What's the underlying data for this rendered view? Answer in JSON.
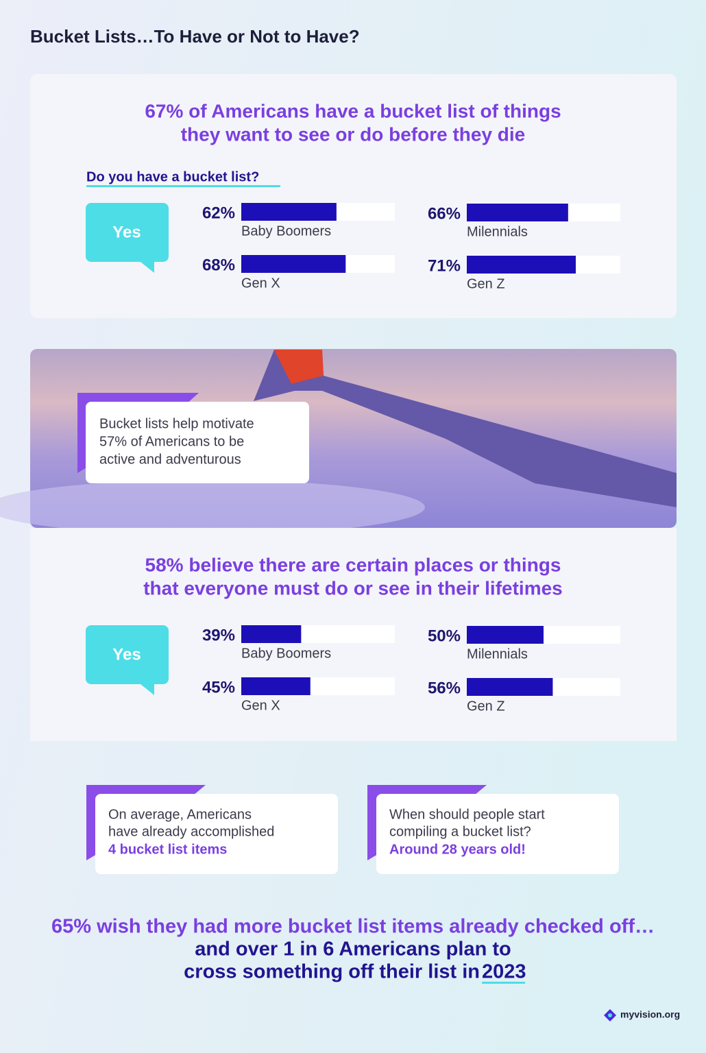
{
  "title": "Bucket Lists…To Have or Not to Have?",
  "sections": [
    {
      "headline": [
        "67% of Americans have a bucket list of things",
        "they want to see or do before they die"
      ],
      "question": "Do you have a bucket list?",
      "answer": "Yes",
      "xlim": [
        0,
        100
      ],
      "groups": [
        {
          "name": "Baby Boomers",
          "value": 62,
          "label": "62%"
        },
        {
          "name": "Milennials",
          "value": 66,
          "label": "66%"
        },
        {
          "name": "Gen X",
          "value": 68,
          "label": "68%"
        },
        {
          "name": "Gen Z",
          "value": 71,
          "label": "71%"
        }
      ]
    },
    {
      "headline": [
        "58% believe there are certain places or things",
        "that everyone must do or see in their lifetimes"
      ],
      "answer": "Yes",
      "xlim": [
        0,
        100
      ],
      "groups": [
        {
          "name": "Baby Boomers",
          "value": 39,
          "label": "39%"
        },
        {
          "name": "Milennials",
          "value": 50,
          "label": "50%"
        },
        {
          "name": "Gen X",
          "value": 45,
          "label": "45%"
        },
        {
          "name": "Gen Z",
          "value": 56,
          "label": "56%"
        }
      ]
    }
  ],
  "image_caption": [
    "Bucket lists help motivate",
    "57% of Americans to be",
    "active and adventurous"
  ],
  "facts": [
    {
      "lines": [
        "On average, Americans",
        "have already accomplished"
      ],
      "highlight": "4 bucket list items"
    },
    {
      "lines": [
        "When should people start",
        "compiling a bucket list?"
      ],
      "highlight": "Around 28 years old!"
    }
  ],
  "closing": {
    "lines": [
      "65% wish they had more bucket list items already checked off…",
      "and over 1 in 6 Americans plan to",
      "cross something off their list in"
    ],
    "highlight": "2023"
  },
  "brand": "myvision.org"
}
